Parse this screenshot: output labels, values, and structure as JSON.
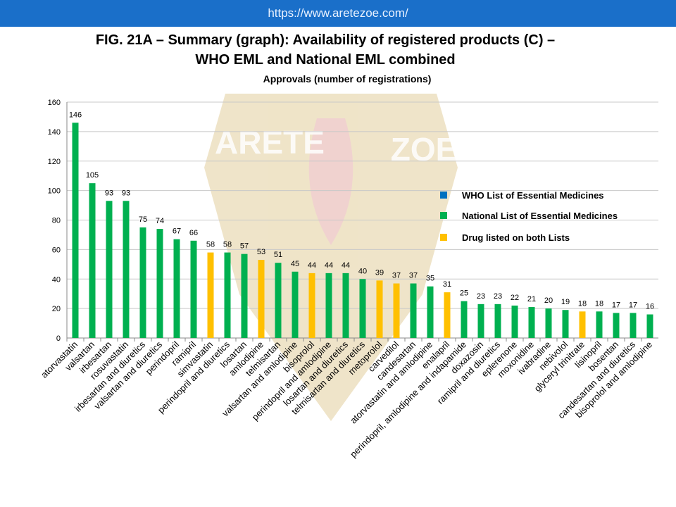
{
  "header": {
    "url": "https://www.aretezoe.com/"
  },
  "chart_data": {
    "type": "bar",
    "title": [
      "FIG. 21A – Summary (graph): Availability of registered products (C) –",
      "WHO EML and National EML combined"
    ],
    "subtitle": "Approvals (number of registrations)",
    "watermark": [
      "ARETE",
      "ZOE"
    ],
    "categories": [
      "atorvastatin",
      "valsartan",
      "irbesartan",
      "rosuvastatin",
      "irbesartan and diuretics",
      "valsartan and diuretics",
      "perindopril",
      "ramipril",
      "simvastatin",
      "perindopril and diuretics",
      "losartan",
      "amlodipine",
      "telmisartan",
      "valsartan and amlodipine",
      "bisoprolol",
      "perindopril and amlodipine",
      "losartan and diuretics",
      "telmisartan and diuretics",
      "metoprolol",
      "carvedilol",
      "candesartan",
      "atorvastatin and amlodipine",
      "enalapril",
      "perindopril, amlodipine and indapamide",
      "doxazosin",
      "ramipril and diuretics",
      "eplerenone",
      "moxonidine",
      "ivabradine",
      "nebivolol",
      "glyceryl trinitrate",
      "lisinopril",
      "bosentan",
      "candesartan and diuretics",
      "bisoprolol and amlodipine"
    ],
    "values": [
      146,
      105,
      93,
      93,
      75,
      74,
      67,
      66,
      58,
      58,
      57,
      53,
      51,
      45,
      44,
      44,
      44,
      40,
      39,
      37,
      37,
      35,
      31,
      25,
      23,
      23,
      22,
      21,
      20,
      19,
      18,
      18,
      17,
      17,
      16
    ],
    "colors": [
      "#00b050",
      "#00b050",
      "#00b050",
      "#00b050",
      "#00b050",
      "#00b050",
      "#00b050",
      "#00b050",
      "#ffc000",
      "#00b050",
      "#00b050",
      "#ffc000",
      "#00b050",
      "#00b050",
      "#ffc000",
      "#00b050",
      "#00b050",
      "#00b050",
      "#ffc000",
      "#ffc000",
      "#00b050",
      "#00b050",
      "#ffc000",
      "#00b050",
      "#00b050",
      "#00b050",
      "#00b050",
      "#00b050",
      "#00b050",
      "#00b050",
      "#ffc000",
      "#00b050",
      "#00b050",
      "#00b050",
      "#00b050"
    ],
    "legend": [
      {
        "name": "WHO List of Essential Medicines",
        "color": "#0070c0"
      },
      {
        "name": "National List of Essential Medicines",
        "color": "#00b050"
      },
      {
        "name": "Drug listed on both Lists",
        "color": "#ffc000"
      }
    ],
    "ylim": [
      0,
      160
    ],
    "yticks": [
      0,
      20,
      40,
      60,
      80,
      100,
      120,
      140,
      160
    ],
    "grid": true
  }
}
